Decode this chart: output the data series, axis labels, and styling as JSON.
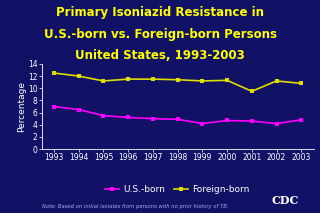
{
  "title_lines": [
    "Primary Isoniazid Resistance in",
    "U.S.-born vs. Foreign-born Persons",
    "United States, 1993-2003"
  ],
  "years": [
    1993,
    1994,
    1995,
    1996,
    1997,
    1998,
    1999,
    2000,
    2001,
    2002,
    2003
  ],
  "us_born": [
    7.0,
    6.5,
    5.5,
    5.2,
    5.0,
    4.9,
    4.2,
    4.7,
    4.6,
    4.2,
    4.8
  ],
  "foreign_born": [
    12.5,
    12.0,
    11.2,
    11.5,
    11.5,
    11.4,
    11.2,
    11.3,
    9.5,
    11.2,
    10.8
  ],
  "us_color": "#FF00FF",
  "foreign_color": "#DDDD00",
  "bg_color": "#111166",
  "plot_bg_color": "#111166",
  "title_color": "#FFFF00",
  "axis_color": "#FFFFFF",
  "tick_color": "#FFFFFF",
  "ylabel": "Percentage",
  "ylim": [
    0,
    14
  ],
  "yticks": [
    0,
    2,
    4,
    6,
    8,
    10,
    12,
    14
  ],
  "legend_us": "U.S.-born",
  "legend_foreign": "Foreign-born",
  "note": "Note: Based on initial isolates from persons with no prior history of TB.",
  "title_fontsize": 8.5,
  "axis_label_fontsize": 6.5,
  "tick_fontsize": 5.5,
  "legend_fontsize": 6.5,
  "note_color": "#AAAAEE",
  "note_fontsize": 3.8
}
